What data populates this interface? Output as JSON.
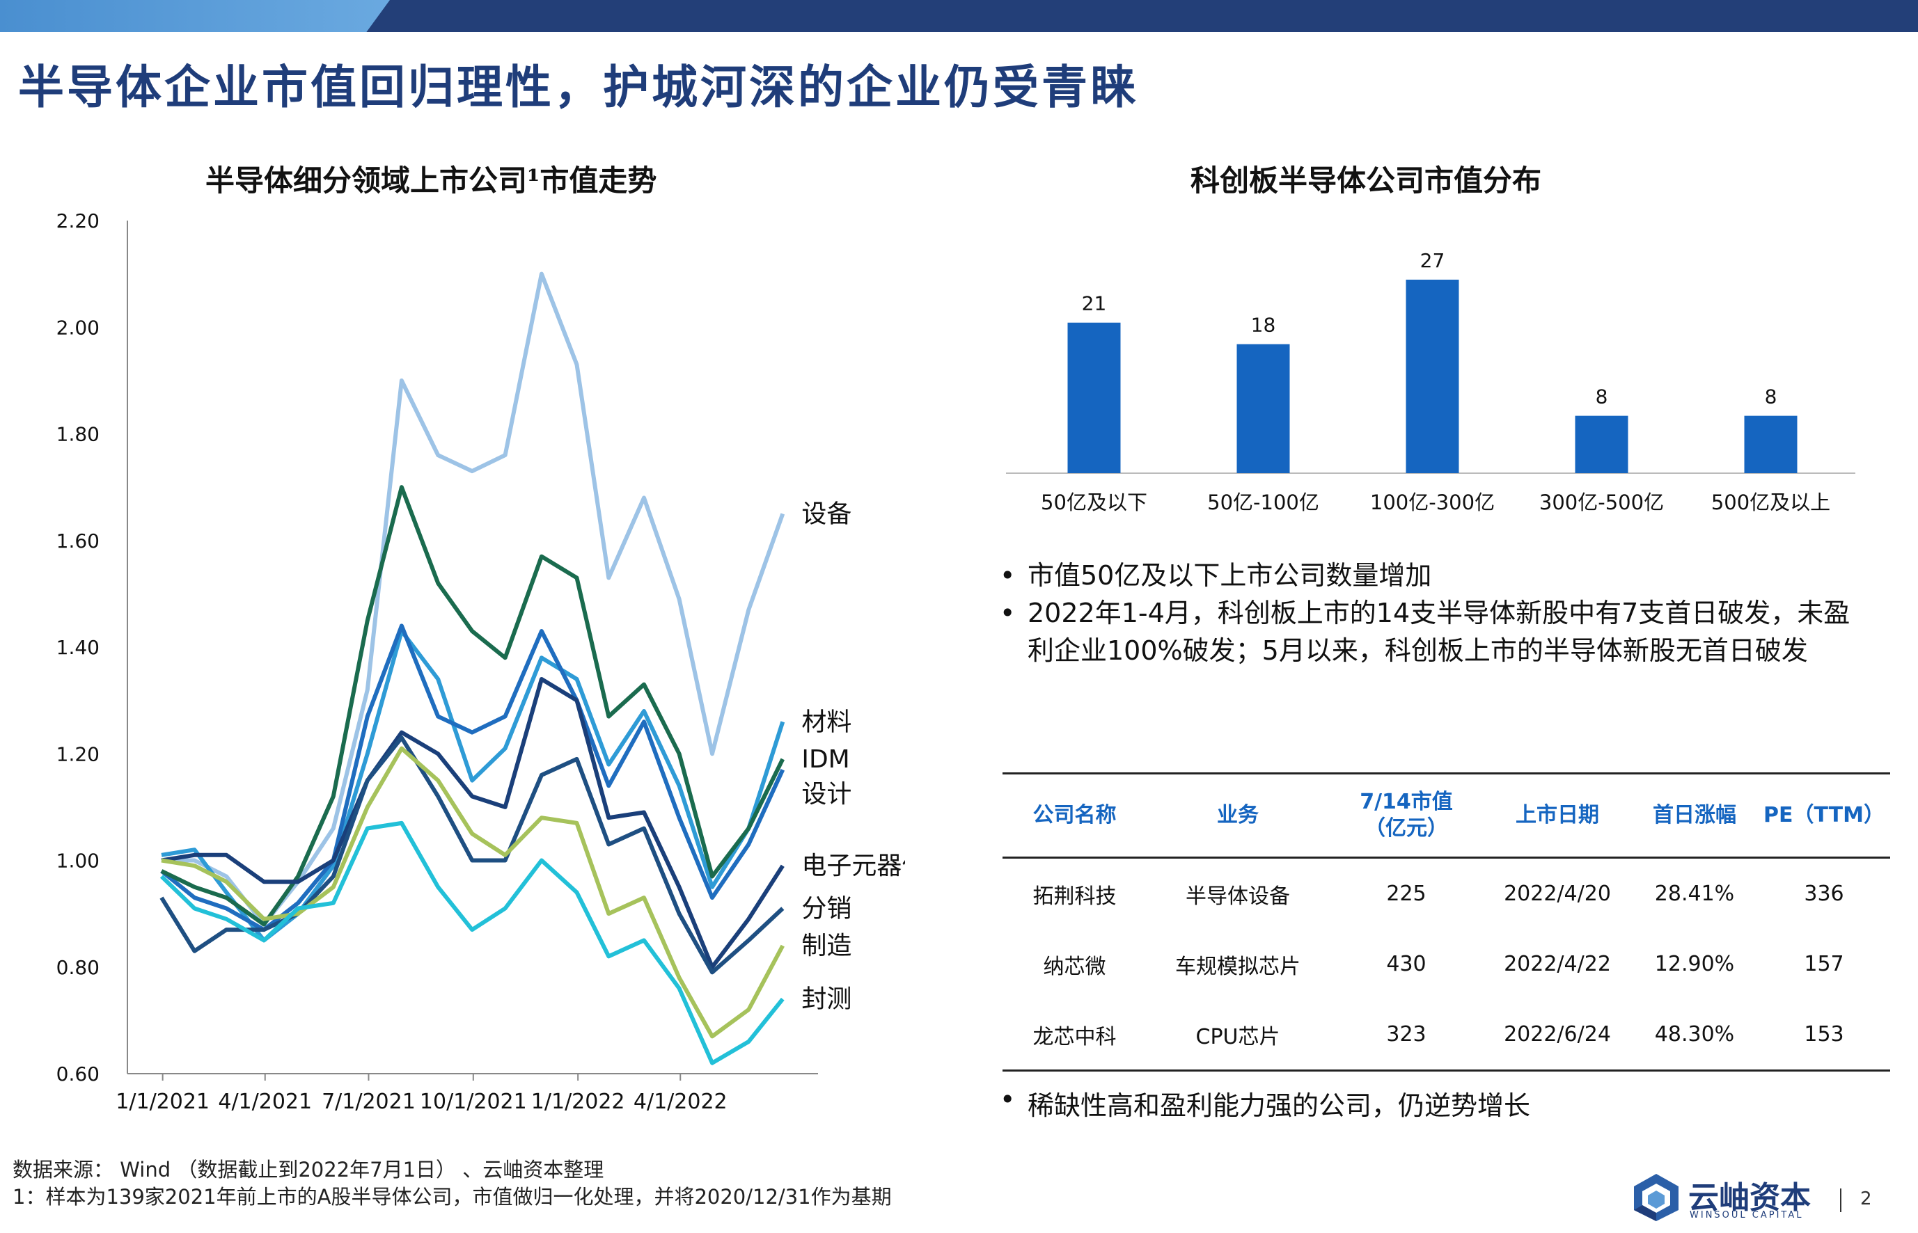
{
  "page": {
    "title": "半导体企业市值回归理性，护城河深的企业仍受青睐",
    "page_number": "2"
  },
  "line_chart": {
    "title": "半导体细分领域上市公司¹市值走势"
  },
  "bar_chart": {
    "title": "科创板半导体公司市值分布"
  },
  "chart_data": [
    {
      "type": "line",
      "title": "半导体细分领域上市公司¹市值走势",
      "x": [
        "2020/12/31",
        "2021/1/29",
        "2021/2/26",
        "2021/3/31",
        "2021/4/30",
        "2021/5/31",
        "2021/6/30",
        "2021/7/30",
        "2021/8/31",
        "2021/9/30",
        "2021/10/29",
        "2021/11/30",
        "2021/12/31",
        "2022/1/28",
        "2022/2/28",
        "2022/3/31",
        "2022/4/29",
        "2022/5/31",
        "2022/6/30"
      ],
      "x_tick_labels": [
        "1/1/2021",
        "4/1/2021",
        "7/1/2021",
        "10/1/2021",
        "1/1/2022",
        "4/1/2022"
      ],
      "x_ticks": [
        "2021/1/1",
        "2021/4/1",
        "2021/7/1",
        "2021/10/1",
        "2022/1/1",
        "2022/4/1"
      ],
      "ylim": [
        0.6,
        2.2
      ],
      "y_ticks": [
        "0.60",
        "0.80",
        "1.00",
        "1.20",
        "1.40",
        "1.60",
        "1.80",
        "2.00",
        "2.20"
      ],
      "series": [
        {
          "name": "设备",
          "color": "#9dc3e6",
          "values": [
            1.0,
            1.0,
            0.97,
            0.88,
            0.96,
            1.06,
            1.32,
            1.9,
            1.76,
            1.73,
            1.76,
            2.1,
            1.93,
            1.53,
            1.68,
            1.49,
            1.2,
            1.47,
            1.65
          ]
        },
        {
          "name": "材料",
          "color": "#2e9bd6",
          "values": [
            1.01,
            1.02,
            0.94,
            0.85,
            0.9,
            0.99,
            1.2,
            1.43,
            1.34,
            1.15,
            1.21,
            1.38,
            1.34,
            1.18,
            1.28,
            1.14,
            0.95,
            1.06,
            1.26
          ]
        },
        {
          "name": "设计",
          "color": "#1f6dbf",
          "values": [
            0.98,
            0.93,
            0.91,
            0.87,
            0.92,
            1.0,
            1.27,
            1.44,
            1.27,
            1.24,
            1.27,
            1.43,
            1.3,
            1.14,
            1.26,
            1.08,
            0.93,
            1.03,
            1.17
          ]
        },
        {
          "name": "IDM",
          "color": "#1a6b4e",
          "values": [
            0.98,
            0.95,
            0.93,
            0.88,
            0.97,
            1.12,
            1.45,
            1.7,
            1.52,
            1.43,
            1.38,
            1.57,
            1.53,
            1.27,
            1.33,
            1.2,
            0.97,
            1.06,
            1.19
          ]
        },
        {
          "name": "电子元器件",
          "color": "#1a3f7a",
          "values": [
            1.0,
            1.01,
            1.01,
            0.96,
            0.96,
            1.0,
            1.15,
            1.24,
            1.2,
            1.12,
            1.1,
            1.34,
            1.3,
            1.08,
            1.09,
            0.95,
            0.8,
            0.89,
            0.99
          ]
        },
        {
          "name": "分销",
          "color": "#1e4f82",
          "values": [
            0.93,
            0.83,
            0.87,
            0.87,
            0.9,
            0.97,
            1.15,
            1.23,
            1.12,
            1.0,
            1.0,
            1.16,
            1.19,
            1.03,
            1.06,
            0.9,
            0.79,
            0.85,
            0.91
          ]
        },
        {
          "name": "制造",
          "color": "#a6c25b",
          "values": [
            1.0,
            0.99,
            0.96,
            0.89,
            0.9,
            0.95,
            1.1,
            1.21,
            1.15,
            1.05,
            1.01,
            1.08,
            1.07,
            0.9,
            0.93,
            0.78,
            0.67,
            0.72,
            0.84
          ]
        },
        {
          "name": "封测",
          "color": "#22c0d8",
          "values": [
            0.97,
            0.91,
            0.89,
            0.85,
            0.91,
            0.92,
            1.06,
            1.07,
            0.95,
            0.87,
            0.91,
            1.0,
            0.94,
            0.82,
            0.85,
            0.76,
            0.62,
            0.66,
            0.74
          ]
        }
      ]
    },
    {
      "type": "bar",
      "title": "科创板半导体公司市值分布",
      "categories": [
        "50亿及以下",
        "50亿-100亿",
        "100亿-300亿",
        "300亿-500亿",
        "500亿及以上"
      ],
      "values": [
        21,
        18,
        27,
        8,
        8
      ],
      "color": "#1565c0"
    }
  ],
  "bullets_top": [
    "市值50亿及以下上市公司数量增加",
    "2022年1-4月，科创板上市的14支半导体新股中有7支首日破发，未盈利企业100%破发；5月以来，科创板上市的半导体新股无首日破发"
  ],
  "table": {
    "headers": {
      "name": "公司名称",
      "business": "业务",
      "mcap_line1": "7/14市值",
      "mcap_line2": "（亿元）",
      "date": "上市日期",
      "gain": "首日涨幅",
      "pe": "PE（TTM）"
    },
    "rows": [
      {
        "name": "拓荆科技",
        "business": "半导体设备",
        "mcap": "225",
        "date": "2022/4/20",
        "gain": "28.41%",
        "pe": "336"
      },
      {
        "name": "纳芯微",
        "business": "车规模拟芯片",
        "mcap": "430",
        "date": "2022/4/22",
        "gain": "12.90%",
        "pe": "157"
      },
      {
        "name": "龙芯中科",
        "business": "CPU芯片",
        "mcap": "323",
        "date": "2022/6/24",
        "gain": "48.30%",
        "pe": "153"
      }
    ]
  },
  "bullet_bottom": "稀缺性高和盈利能力强的公司，仍逆势增长",
  "footnotes": {
    "source": "数据来源： Wind （数据截止到2022年7月1日） 、云岫资本整理",
    "note": "1：样本为139家2021年前上市的A股半导体公司，市值做归一化处理，并将2020/12/31作为基期"
  },
  "logo": {
    "cn": "云岫资本",
    "en": "WINSOUL CAPITAL"
  }
}
